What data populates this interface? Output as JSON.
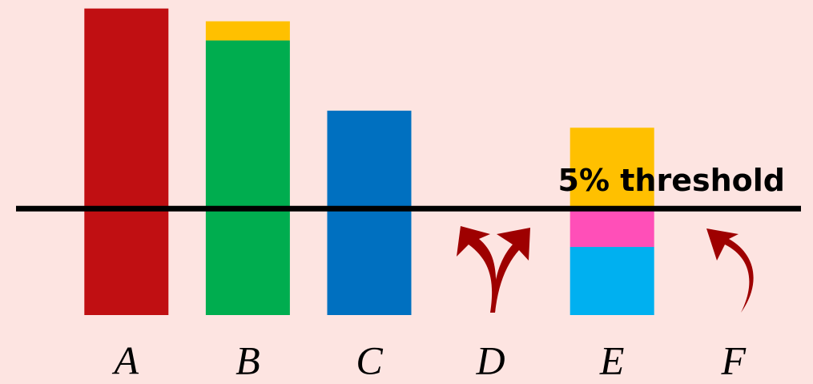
{
  "chart_data": {
    "type": "bar",
    "stacked": true,
    "categories": [
      "A",
      "B",
      "C",
      "D",
      "E",
      "F"
    ],
    "series": [
      {
        "colors": [
          "#c00f12",
          "#00ad4f",
          "#0070c0",
          "#0070c0",
          "#00b0f0",
          "#00b0f0"
        ],
        "values": [
          14.4,
          12.9,
          9.6,
          0,
          3.2,
          0
        ]
      },
      {
        "colors": [
          "#ff4fb8",
          "#ff4fb8",
          "#ff4fb8",
          "#ff4fb8",
          "#ff4fb8",
          "#ff4fb8"
        ],
        "values": [
          0,
          0,
          0,
          0,
          1.8,
          0
        ]
      },
      {
        "colors": [
          "#ffc000",
          "#ffc000",
          "#ffc000",
          "#ffc000",
          "#ffc000",
          "#ffc000"
        ],
        "values": [
          0,
          0.9,
          0,
          0,
          3.8,
          0
        ]
      }
    ],
    "ylim": [
      0,
      14.8
    ],
    "threshold": {
      "value": 5,
      "label": "5% threshold"
    }
  }
}
